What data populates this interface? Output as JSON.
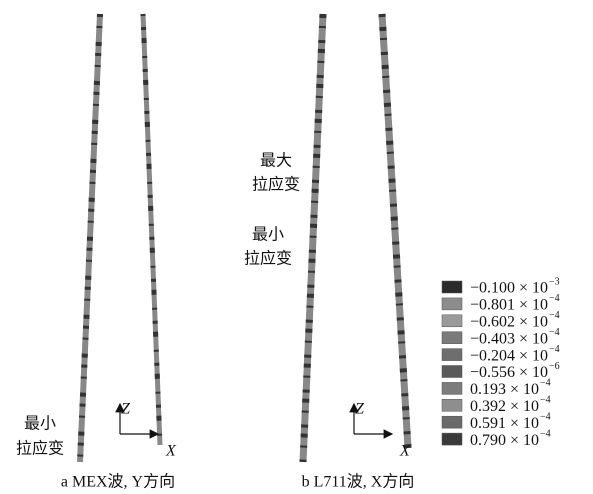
{
  "panels": [
    {
      "caption": "a  MEX波, Y方向",
      "annotations": [
        {
          "lines": [
            "最小",
            "拉应变"
          ]
        }
      ],
      "axes": {
        "z": "Z",
        "x": "X"
      }
    },
    {
      "caption": "b  L711波, X方向",
      "annotations": [
        {
          "lines": [
            "最大",
            "拉应变"
          ]
        },
        {
          "lines": [
            "最小",
            "拉应变"
          ]
        }
      ],
      "axes": {
        "z": "Z",
        "x": "X"
      }
    }
  ],
  "legend": [
    {
      "label": "−0.100 × 10",
      "exponent": "−3",
      "color": "#2b2b2b"
    },
    {
      "label": "−0.801 × 10",
      "exponent": "−4",
      "color": "#8c8c8c"
    },
    {
      "label": "−0.602 × 10",
      "exponent": "−4",
      "color": "#9a9a9a"
    },
    {
      "label": "−0.403 × 10",
      "exponent": "−4",
      "color": "#7a7a7a"
    },
    {
      "label": "−0.204 × 10",
      "exponent": "−4",
      "color": "#6e6e6e"
    },
    {
      "label": "−0.556 × 10",
      "exponent": "−6",
      "color": "#5a5a5a"
    },
    {
      "label": "0.193 × 10",
      "exponent": "−4",
      "color": "#7c7c7c"
    },
    {
      "label": "0.392 × 10",
      "exponent": "−4",
      "color": "#8e8e8e"
    },
    {
      "label": "0.591 × 10",
      "exponent": "−4",
      "color": "#6a6a6a"
    },
    {
      "label": "0.790 × 10",
      "exponent": "−4",
      "color": "#3a3a3a"
    }
  ]
}
